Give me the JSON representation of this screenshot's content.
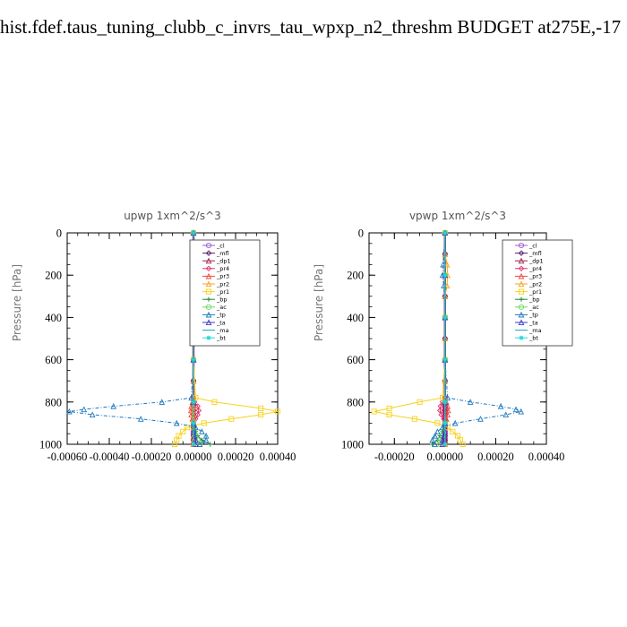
{
  "page_title": "hist.fdef.taus_tuning_clubb_c_invrs_tau_wpxp_n2_threshm  BUDGET at275E,-17",
  "chart_data": [
    {
      "type": "line",
      "title": "upwp   1xm^2/s^3",
      "ylabel": "Pressure [hPa]",
      "ylim": [
        1000,
        0
      ],
      "xlim": [
        -0.0006,
        0.0004
      ],
      "x_ticks": [
        -0.0006,
        -0.0004,
        -0.0002,
        0.0,
        0.0002,
        0.0004
      ],
      "x_tick_labels": [
        "-0.00060",
        "-0.00040",
        "-0.00020",
        "0.00000",
        "0.00020",
        "0.00040"
      ],
      "y_ticks": [
        0,
        200,
        400,
        600,
        800,
        1000
      ],
      "y_tick_labels": [
        "0",
        "200",
        "400",
        "600",
        "800",
        "1000"
      ],
      "legend_position": "top-right",
      "series": [
        {
          "name": "_cl",
          "color": "#9b59d0",
          "marker": "circle",
          "y": [
            0,
            100,
            200,
            300,
            400,
            500,
            600,
            700,
            780,
            800,
            820,
            840,
            860,
            880,
            900,
            920,
            940,
            960,
            980,
            1000
          ],
          "x": [
            0,
            0,
            0,
            0,
            0,
            0,
            0,
            0,
            0,
            0,
            0,
            0,
            0,
            0,
            0,
            0,
            0,
            0,
            0,
            0
          ]
        },
        {
          "name": "_mfl",
          "color": "#5b1a6e",
          "marker": "diamond",
          "y": [
            0,
            100,
            200,
            300,
            400,
            500,
            600,
            700,
            780,
            800,
            820,
            840,
            860,
            880,
            900,
            920,
            940,
            960,
            980,
            1000
          ],
          "x": [
            0,
            0,
            0,
            0,
            0,
            0,
            0,
            0,
            0,
            0,
            0,
            0,
            0,
            0,
            0,
            0,
            0,
            0,
            0,
            0
          ]
        },
        {
          "name": "_dp1",
          "color": "#a0204a",
          "marker": "triangle",
          "y": [
            0,
            100,
            200,
            300,
            400,
            500,
            600,
            700,
            780,
            800,
            820,
            840,
            860,
            880,
            900,
            920,
            940,
            960,
            980,
            1000
          ],
          "x": [
            0,
            0,
            0,
            0,
            0,
            0,
            0,
            0,
            0,
            0,
            0,
            0,
            0,
            0,
            0,
            0,
            0,
            0,
            0,
            0
          ]
        },
        {
          "name": "_pr4",
          "color": "#e0306a",
          "marker": "diamond",
          "y": [
            0,
            200,
            400,
            600,
            780,
            800,
            820,
            840,
            860,
            880,
            900,
            940,
            1000
          ],
          "x": [
            0,
            0,
            0,
            0,
            0,
            5e-06,
            2e-05,
            2.5e-05,
            2e-05,
            1e-05,
            0,
            0,
            0
          ]
        },
        {
          "name": "_pr3",
          "color": "#f04848",
          "marker": "triangle",
          "y": [
            0,
            200,
            400,
            600,
            780,
            800,
            820,
            840,
            860,
            880,
            900,
            940,
            1000
          ],
          "x": [
            0,
            0,
            0,
            0,
            0,
            -5e-06,
            -1e-05,
            -1.2e-05,
            -1e-05,
            -5e-06,
            0,
            0,
            0
          ]
        },
        {
          "name": "_pr2",
          "color": "#f5a623",
          "marker": "triangle",
          "y": [
            0,
            100,
            200,
            300,
            400,
            500,
            600,
            700,
            780,
            800,
            820,
            840,
            860,
            880,
            900,
            920,
            940,
            960,
            980,
            1000
          ],
          "x": [
            0,
            0,
            0,
            0,
            0,
            0,
            0,
            0,
            0,
            0,
            0,
            0,
            0,
            0,
            0,
            0,
            0,
            0,
            0,
            0
          ]
        },
        {
          "name": "_pr1",
          "color": "#f7d21e",
          "marker": "square",
          "y": [
            0,
            200,
            400,
            600,
            780,
            800,
            830,
            845,
            860,
            880,
            900,
            920,
            940,
            960,
            980,
            1000
          ],
          "x": [
            0,
            0,
            0,
            0,
            1e-05,
            0.0001,
            0.00032,
            0.0004,
            0.00032,
            0.00018,
            5e-05,
            -3e-05,
            -5e-05,
            -7e-05,
            -8e-05,
            -9e-05
          ]
        },
        {
          "name": "_bp",
          "color": "#1a8a3a",
          "marker": "plus",
          "y": [
            0,
            200,
            400,
            600,
            800,
            900,
            940,
            960,
            980,
            1000
          ],
          "x": [
            0,
            0,
            0,
            0,
            0,
            0,
            1e-05,
            2e-05,
            4e-05,
            8e-05
          ]
        },
        {
          "name": "_ac",
          "color": "#6bd85a",
          "marker": "circle",
          "y": [
            0,
            200,
            400,
            600,
            800,
            900,
            940,
            960,
            980,
            1000
          ],
          "x": [
            0,
            0,
            0,
            0,
            0,
            0,
            5e-06,
            1e-05,
            2e-05,
            3e-05
          ]
        },
        {
          "name": "_tp",
          "color": "#1f7ac0",
          "marker": "triangle",
          "y": [
            0,
            200,
            400,
            600,
            780,
            800,
            820,
            835,
            845,
            860,
            880,
            900,
            920,
            940,
            960,
            980,
            1000
          ],
          "x": [
            0,
            0,
            0,
            0,
            -1e-05,
            -0.00015,
            -0.00038,
            -0.00052,
            -0.00059,
            -0.00048,
            -0.00025,
            -8e-05,
            1e-05,
            4e-05,
            6e-05,
            6e-05,
            3e-05
          ]
        },
        {
          "name": "_ta",
          "color": "#3a3ad0",
          "marker": "triangle",
          "y": [
            0,
            200,
            400,
            600,
            800,
            900,
            940,
            960,
            980,
            1000
          ],
          "x": [
            0,
            0,
            0,
            0,
            0,
            0,
            0,
            5e-06,
            1e-05,
            1e-05
          ]
        },
        {
          "name": "_ma",
          "color": "#1aa0c8",
          "marker": "none",
          "y": [
            0,
            200,
            400,
            600,
            800,
            900,
            1000
          ],
          "x": [
            0,
            0,
            0,
            0,
            0,
            0,
            0
          ]
        },
        {
          "name": "_bt",
          "color": "#22d8d8",
          "marker": "star",
          "y": [
            0,
            200,
            400,
            600,
            800,
            900,
            1000
          ],
          "x": [
            0,
            0,
            0,
            0,
            0,
            0,
            0
          ]
        }
      ]
    },
    {
      "type": "line",
      "title": "vpwp   1xm^2/s^3",
      "ylabel": "Pressure [hPa]",
      "ylim": [
        1000,
        0
      ],
      "xlim": [
        -0.0003,
        0.0004
      ],
      "x_ticks": [
        -0.0002,
        0.0,
        0.0002,
        0.0004
      ],
      "x_tick_labels": [
        "-0.00020",
        "0.00000",
        "0.00020",
        "0.00040"
      ],
      "y_ticks": [
        0,
        200,
        400,
        600,
        800,
        1000
      ],
      "y_tick_labels": [
        "0",
        "200",
        "400",
        "600",
        "800",
        "1000"
      ],
      "legend_position": "top-right",
      "series": [
        {
          "name": "_cl",
          "color": "#9b59d0",
          "marker": "circle",
          "y": [
            0,
            100,
            200,
            300,
            400,
            500,
            600,
            700,
            780,
            800,
            820,
            840,
            860,
            880,
            900,
            920,
            940,
            960,
            980,
            1000
          ],
          "x": [
            0,
            0,
            0,
            0,
            0,
            0,
            0,
            0,
            0,
            0,
            0,
            0,
            0,
            0,
            0,
            0,
            0,
            0,
            0,
            0
          ]
        },
        {
          "name": "_mfl",
          "color": "#5b1a6e",
          "marker": "diamond",
          "y": [
            0,
            100,
            200,
            300,
            400,
            500,
            600,
            700,
            780,
            800,
            820,
            840,
            860,
            880,
            900,
            920,
            940,
            960,
            980,
            1000
          ],
          "x": [
            0,
            0,
            0,
            0,
            0,
            0,
            0,
            0,
            0,
            0,
            0,
            0,
            0,
            0,
            0,
            0,
            0,
            0,
            0,
            0
          ]
        },
        {
          "name": "_dp1",
          "color": "#a0204a",
          "marker": "triangle",
          "y": [
            0,
            100,
            200,
            300,
            400,
            500,
            600,
            700,
            780,
            800,
            820,
            840,
            860,
            880,
            900,
            920,
            940,
            960,
            980,
            1000
          ],
          "x": [
            0,
            0,
            0,
            0,
            0,
            0,
            0,
            0,
            0,
            0,
            0,
            0,
            0,
            0,
            0,
            0,
            0,
            0,
            0,
            0
          ]
        },
        {
          "name": "_pr4",
          "color": "#e0306a",
          "marker": "diamond",
          "y": [
            0,
            200,
            400,
            600,
            780,
            800,
            820,
            840,
            860,
            880,
            900,
            940,
            1000
          ],
          "x": [
            0,
            0,
            0,
            0,
            0,
            -1e-05,
            -1.8e-05,
            -2e-05,
            -1.5e-05,
            -5e-06,
            0,
            0,
            0
          ]
        },
        {
          "name": "_pr3",
          "color": "#f04848",
          "marker": "triangle",
          "y": [
            0,
            200,
            400,
            600,
            780,
            800,
            820,
            840,
            860,
            880,
            900,
            940,
            1000
          ],
          "x": [
            0,
            0,
            0,
            0,
            0,
            5e-06,
            1e-05,
            1.2e-05,
            1e-05,
            5e-06,
            0,
            0,
            0
          ]
        },
        {
          "name": "_pr2",
          "color": "#f5a623",
          "marker": "triangle",
          "y": [
            0,
            100,
            150,
            200,
            250,
            300,
            400,
            500,
            600,
            700,
            780,
            800,
            900,
            1000
          ],
          "x": [
            0,
            0,
            8e-06,
            1e-05,
            8e-06,
            0,
            0,
            0,
            0,
            0,
            0,
            0,
            0,
            0
          ]
        },
        {
          "name": "_pr1",
          "color": "#f7d21e",
          "marker": "square",
          "y": [
            0,
            200,
            400,
            600,
            780,
            800,
            830,
            845,
            860,
            880,
            900,
            920,
            940,
            960,
            980,
            1000
          ],
          "x": [
            0,
            0,
            0,
            0,
            -1e-05,
            -0.0001,
            -0.00022,
            -0.00028,
            -0.00022,
            -0.00012,
            -3e-05,
            1e-05,
            3e-05,
            5e-05,
            6e-05,
            7e-05
          ]
        },
        {
          "name": "_bp",
          "color": "#1a8a3a",
          "marker": "plus",
          "y": [
            0,
            200,
            400,
            600,
            800,
            900,
            940,
            960,
            980,
            1000
          ],
          "x": [
            0,
            0,
            0,
            0,
            0,
            0,
            -1e-05,
            -2e-05,
            -3e-05,
            -5e-05
          ]
        },
        {
          "name": "_ac",
          "color": "#6bd85a",
          "marker": "circle",
          "y": [
            0,
            200,
            400,
            600,
            800,
            900,
            940,
            960,
            980,
            1000
          ],
          "x": [
            0,
            0,
            0,
            0,
            0,
            0,
            -5e-06,
            -1e-05,
            -2e-05,
            -2e-05
          ]
        },
        {
          "name": "_tp",
          "color": "#1f7ac0",
          "marker": "triangle",
          "y": [
            0,
            150,
            200,
            250,
            400,
            600,
            780,
            800,
            820,
            835,
            845,
            860,
            880,
            900,
            920,
            940,
            960,
            980,
            1000
          ],
          "x": [
            0,
            -8e-06,
            -1e-05,
            -5e-06,
            0,
            0,
            1e-05,
            0.0001,
            0.00022,
            0.00028,
            0.0003,
            0.00024,
            0.00014,
            4e-05,
            -1e-05,
            -3e-05,
            -4e-05,
            -5e-05,
            -4e-05
          ]
        },
        {
          "name": "_ta",
          "color": "#3a3ad0",
          "marker": "triangle",
          "y": [
            0,
            200,
            400,
            600,
            800,
            900,
            940,
            960,
            980,
            1000
          ],
          "x": [
            0,
            0,
            0,
            0,
            0,
            0,
            0,
            -5e-06,
            -1e-05,
            -1e-05
          ]
        },
        {
          "name": "_ma",
          "color": "#1aa0c8",
          "marker": "none",
          "y": [
            0,
            200,
            400,
            600,
            800,
            900,
            1000
          ],
          "x": [
            0,
            0,
            0,
            0,
            0,
            0,
            0
          ]
        },
        {
          "name": "_bt",
          "color": "#22d8d8",
          "marker": "star",
          "y": [
            0,
            200,
            400,
            600,
            800,
            900,
            1000
          ],
          "x": [
            0,
            0,
            0,
            0,
            0,
            0,
            0
          ]
        }
      ]
    }
  ]
}
